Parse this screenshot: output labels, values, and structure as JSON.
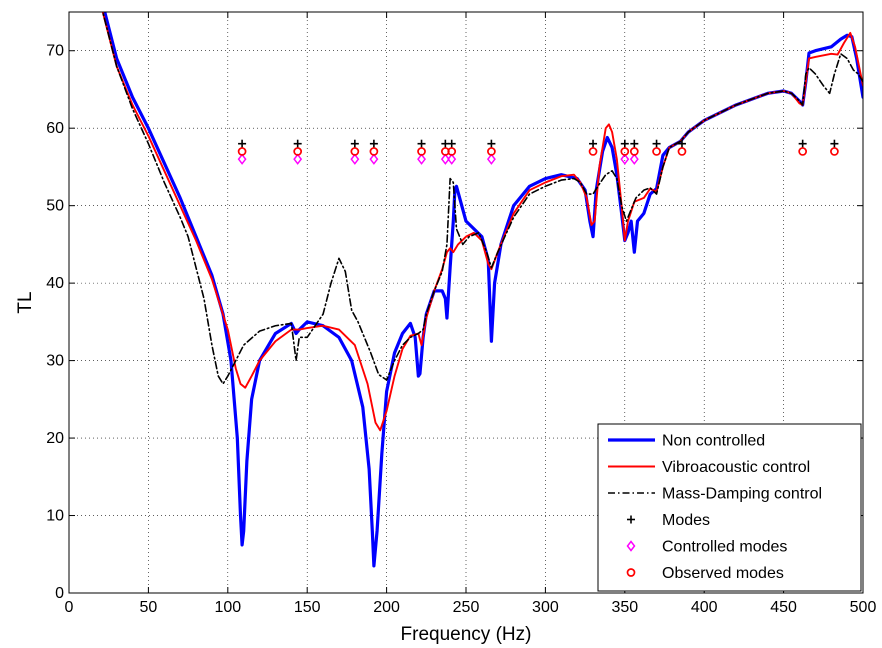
{
  "chart_data": {
    "type": "line",
    "title": "",
    "xlabel": "Frequency (Hz)",
    "ylabel": "TL",
    "xlim": [
      0,
      500
    ],
    "ylim": [
      0,
      75
    ],
    "xticks": [
      0,
      50,
      100,
      150,
      200,
      250,
      300,
      350,
      400,
      450,
      500
    ],
    "xtick_labels": [
      "0",
      "50",
      "100",
      "150",
      "200",
      "250",
      "300",
      "350",
      "400",
      "450",
      "500"
    ],
    "yticks": [
      0,
      10,
      20,
      30,
      40,
      50,
      60,
      70
    ],
    "ytick_labels": [
      "0",
      "10",
      "20",
      "30",
      "40",
      "50",
      "60",
      "70"
    ],
    "grid": true,
    "legend_position": "bottom-right",
    "series": [
      {
        "name": "Non controlled",
        "color": "#0000ff",
        "style": "solid-thick",
        "points": [
          [
            20,
            77
          ],
          [
            25,
            73
          ],
          [
            30,
            69
          ],
          [
            40,
            64
          ],
          [
            50,
            60
          ],
          [
            60,
            55.5
          ],
          [
            70,
            51
          ],
          [
            80,
            46
          ],
          [
            90,
            41
          ],
          [
            97,
            36
          ],
          [
            102,
            30
          ],
          [
            106,
            20
          ],
          [
            108,
            10
          ],
          [
            109,
            6.2
          ],
          [
            110,
            8
          ],
          [
            112,
            17
          ],
          [
            115,
            25
          ],
          [
            120,
            30
          ],
          [
            130,
            33.5
          ],
          [
            140,
            34.8
          ],
          [
            143,
            33.5
          ],
          [
            145,
            34
          ],
          [
            150,
            35
          ],
          [
            160,
            34.5
          ],
          [
            170,
            33
          ],
          [
            178,
            30
          ],
          [
            185,
            24
          ],
          [
            189,
            16
          ],
          [
            191,
            8
          ],
          [
            192,
            3.5
          ],
          [
            194,
            8
          ],
          [
            197,
            18
          ],
          [
            200,
            26
          ],
          [
            205,
            31
          ],
          [
            210,
            33.5
          ],
          [
            215,
            34.8
          ],
          [
            218,
            33
          ],
          [
            220,
            28
          ],
          [
            221,
            28.3
          ],
          [
            223,
            33
          ],
          [
            225,
            36
          ],
          [
            230,
            39
          ],
          [
            235,
            39
          ],
          [
            237,
            38
          ],
          [
            238,
            35.5
          ],
          [
            240,
            42
          ],
          [
            242,
            48
          ],
          [
            243,
            52
          ],
          [
            244,
            52.5
          ],
          [
            246,
            51
          ],
          [
            250,
            48
          ],
          [
            255,
            47
          ],
          [
            260,
            46
          ],
          [
            264,
            43
          ],
          [
            266,
            32.5
          ],
          [
            268,
            40
          ],
          [
            272,
            45
          ],
          [
            280,
            50
          ],
          [
            290,
            52.5
          ],
          [
            300,
            53.5
          ],
          [
            310,
            54
          ],
          [
            320,
            53.5
          ],
          [
            325,
            52
          ],
          [
            328,
            48
          ],
          [
            330,
            46
          ],
          [
            332,
            52
          ],
          [
            336,
            57
          ],
          [
            339,
            58.8
          ],
          [
            342,
            57.5
          ],
          [
            345,
            54
          ],
          [
            348,
            49
          ],
          [
            350,
            45.5
          ],
          [
            352,
            46.5
          ],
          [
            354,
            48
          ],
          [
            356,
            44
          ],
          [
            358,
            48
          ],
          [
            362,
            49
          ],
          [
            366,
            51.5
          ],
          [
            370,
            52.2
          ],
          [
            374,
            56.5
          ],
          [
            378,
            57.5
          ],
          [
            385,
            58.3
          ],
          [
            390,
            59.5
          ],
          [
            400,
            61
          ],
          [
            420,
            63
          ],
          [
            440,
            64.5
          ],
          [
            450,
            64.8
          ],
          [
            455,
            64.5
          ],
          [
            460,
            63.5
          ],
          [
            462,
            63
          ],
          [
            464,
            66
          ],
          [
            466,
            69.7
          ],
          [
            470,
            70
          ],
          [
            480,
            70.5
          ],
          [
            486,
            71.5
          ],
          [
            490,
            72
          ],
          [
            493,
            71.8
          ],
          [
            496,
            69
          ],
          [
            500,
            64
          ]
        ]
      },
      {
        "name": "Vibroacoustic control",
        "color": "#ff0000",
        "style": "solid",
        "points": [
          [
            20,
            76
          ],
          [
            25,
            72
          ],
          [
            30,
            68
          ],
          [
            40,
            63
          ],
          [
            50,
            59
          ],
          [
            60,
            54.5
          ],
          [
            70,
            50
          ],
          [
            80,
            45.5
          ],
          [
            90,
            40.5
          ],
          [
            100,
            34
          ],
          [
            105,
            29
          ],
          [
            108,
            27
          ],
          [
            111,
            26.5
          ],
          [
            115,
            28
          ],
          [
            120,
            30
          ],
          [
            130,
            32.5
          ],
          [
            140,
            34
          ],
          [
            145,
            34
          ],
          [
            150,
            34.2
          ],
          [
            160,
            34.5
          ],
          [
            170,
            34
          ],
          [
            180,
            32
          ],
          [
            188,
            27
          ],
          [
            193,
            22
          ],
          [
            196,
            21
          ],
          [
            200,
            23.5
          ],
          [
            205,
            28
          ],
          [
            210,
            31.5
          ],
          [
            215,
            33.2
          ],
          [
            220,
            33.5
          ],
          [
            222,
            32
          ],
          [
            225,
            35.5
          ],
          [
            230,
            39
          ],
          [
            235,
            41.8
          ],
          [
            238,
            44
          ],
          [
            240,
            44.5
          ],
          [
            242,
            44
          ],
          [
            245,
            45
          ],
          [
            250,
            46
          ],
          [
            255,
            46.5
          ],
          [
            260,
            45.5
          ],
          [
            264,
            42.5
          ],
          [
            266,
            41.8
          ],
          [
            270,
            44
          ],
          [
            280,
            49
          ],
          [
            290,
            52
          ],
          [
            300,
            53
          ],
          [
            310,
            53.8
          ],
          [
            318,
            54
          ],
          [
            322,
            53
          ],
          [
            326,
            51
          ],
          [
            329,
            47.5
          ],
          [
            331,
            48
          ],
          [
            334,
            55
          ],
          [
            338,
            60
          ],
          [
            340,
            60.5
          ],
          [
            342,
            59.5
          ],
          [
            345,
            56
          ],
          [
            348,
            50
          ],
          [
            350,
            45.5
          ],
          [
            352,
            48
          ],
          [
            356,
            50.5
          ],
          [
            362,
            51
          ],
          [
            366,
            52.2
          ],
          [
            370,
            51.8
          ],
          [
            374,
            55
          ],
          [
            378,
            57.5
          ],
          [
            385,
            58.3
          ],
          [
            390,
            59.5
          ],
          [
            400,
            61
          ],
          [
            420,
            63
          ],
          [
            440,
            64.5
          ],
          [
            450,
            64.8
          ],
          [
            455,
            64.5
          ],
          [
            460,
            63.2
          ],
          [
            462,
            63
          ],
          [
            464,
            66
          ],
          [
            466,
            69
          ],
          [
            470,
            69.2
          ],
          [
            480,
            69.6
          ],
          [
            484,
            69.5
          ],
          [
            488,
            71
          ],
          [
            492,
            72.3
          ],
          [
            495,
            70.5
          ],
          [
            500,
            65.5
          ]
        ]
      },
      {
        "name": "Mass-Damping control",
        "color": "#000000",
        "style": "dashdot",
        "points": [
          [
            20,
            76
          ],
          [
            25,
            72
          ],
          [
            30,
            68
          ],
          [
            40,
            62.5
          ],
          [
            50,
            58
          ],
          [
            60,
            53
          ],
          [
            70,
            48.5
          ],
          [
            75,
            46
          ],
          [
            80,
            42
          ],
          [
            85,
            38
          ],
          [
            90,
            32
          ],
          [
            94,
            28
          ],
          [
            97,
            27
          ],
          [
            100,
            28
          ],
          [
            105,
            30
          ],
          [
            110,
            32
          ],
          [
            120,
            33.8
          ],
          [
            130,
            34.5
          ],
          [
            140,
            34.8
          ],
          [
            143,
            30
          ],
          [
            145,
            33
          ],
          [
            150,
            33
          ],
          [
            155,
            34.5
          ],
          [
            160,
            36
          ],
          [
            165,
            40
          ],
          [
            170,
            43.2
          ],
          [
            174,
            41.5
          ],
          [
            178,
            36.5
          ],
          [
            182,
            35
          ],
          [
            190,
            31
          ],
          [
            195,
            28.2
          ],
          [
            200,
            27.5
          ],
          [
            205,
            30
          ],
          [
            210,
            32
          ],
          [
            215,
            33
          ],
          [
            220,
            33.5
          ],
          [
            223,
            34
          ],
          [
            225,
            36
          ],
          [
            230,
            39
          ],
          [
            235,
            41.5
          ],
          [
            238,
            45
          ],
          [
            240,
            53.5
          ],
          [
            242,
            53
          ],
          [
            244,
            47
          ],
          [
            248,
            45
          ],
          [
            252,
            46
          ],
          [
            258,
            46.5
          ],
          [
            263,
            44
          ],
          [
            266,
            42
          ],
          [
            270,
            44
          ],
          [
            280,
            48.5
          ],
          [
            290,
            51.5
          ],
          [
            300,
            52.5
          ],
          [
            310,
            53.3
          ],
          [
            318,
            53.5
          ],
          [
            322,
            53
          ],
          [
            326,
            51.5
          ],
          [
            330,
            51.5
          ],
          [
            334,
            52.8
          ],
          [
            338,
            54
          ],
          [
            342,
            54.5
          ],
          [
            345,
            53.5
          ],
          [
            348,
            50
          ],
          [
            351,
            48
          ],
          [
            353,
            49
          ],
          [
            357,
            51
          ],
          [
            362,
            52
          ],
          [
            366,
            52.3
          ],
          [
            370,
            51.5
          ],
          [
            374,
            55
          ],
          [
            378,
            57.5
          ],
          [
            385,
            58.3
          ],
          [
            390,
            59.5
          ],
          [
            400,
            61
          ],
          [
            420,
            63
          ],
          [
            440,
            64.5
          ],
          [
            450,
            64.8
          ],
          [
            455,
            64.5
          ],
          [
            460,
            63.5
          ],
          [
            462,
            63
          ],
          [
            464,
            67
          ],
          [
            466,
            67.8
          ],
          [
            470,
            67
          ],
          [
            475,
            65.5
          ],
          [
            479,
            64.5
          ],
          [
            482,
            67
          ],
          [
            486,
            69.6
          ],
          [
            490,
            69
          ],
          [
            494,
            67.5
          ],
          [
            497,
            67
          ],
          [
            500,
            66
          ]
        ]
      }
    ],
    "markers": [
      {
        "name": "Modes",
        "symbol": "plus",
        "color": "#000000",
        "y": 58,
        "x": [
          109,
          144,
          180,
          192,
          222,
          237,
          241,
          266,
          330,
          350,
          356,
          370,
          386,
          462,
          482
        ]
      },
      {
        "name": "Controlled modes",
        "symbol": "diamond",
        "color": "#ff00ff",
        "y": 56,
        "x": [
          109,
          144,
          180,
          192,
          222,
          237,
          241,
          266,
          350,
          356
        ]
      },
      {
        "name": "Observed modes",
        "symbol": "circle",
        "color": "#ff0000",
        "y": 57,
        "x": [
          109,
          144,
          180,
          192,
          222,
          237,
          241,
          266,
          330,
          350,
          356,
          370,
          386,
          462,
          482
        ]
      }
    ],
    "legend": [
      {
        "label": "Non controlled",
        "kind": "line",
        "series": 0
      },
      {
        "label": "Vibroacoustic control",
        "kind": "line",
        "series": 1
      },
      {
        "label": "Mass-Damping control",
        "kind": "line",
        "series": 2
      },
      {
        "label": "Modes",
        "kind": "marker",
        "marker": 0
      },
      {
        "label": "Controlled modes",
        "kind": "marker",
        "marker": 1
      },
      {
        "label": "Observed modes",
        "kind": "marker",
        "marker": 2
      }
    ]
  }
}
